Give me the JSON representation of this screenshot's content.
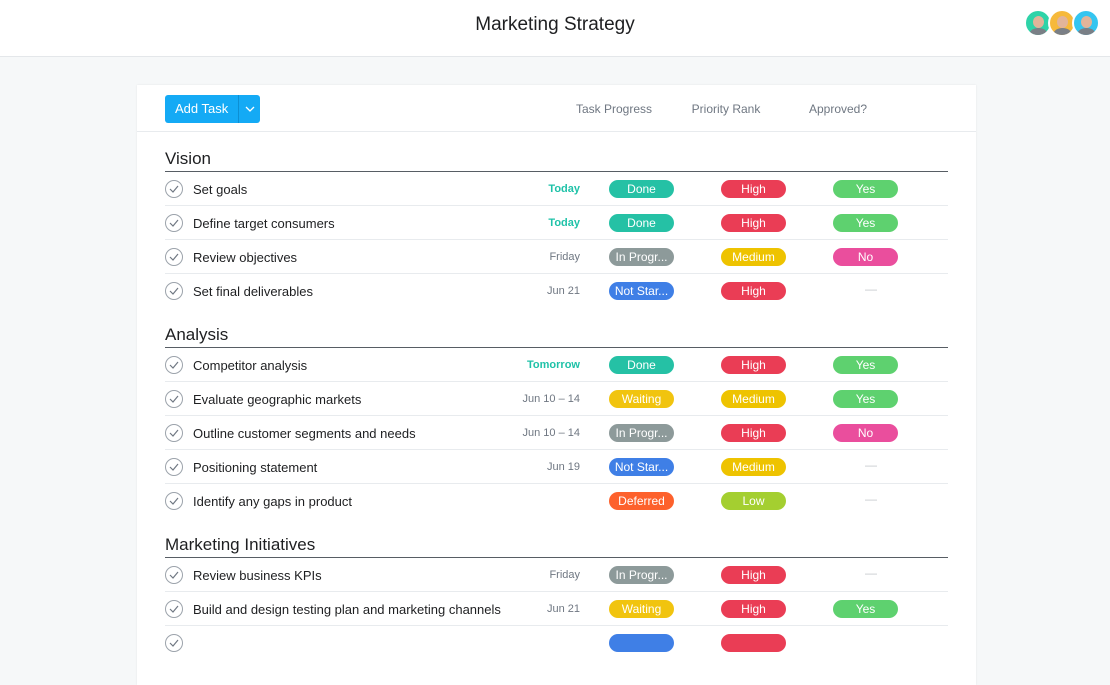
{
  "header": {
    "title": "Marketing Strategy",
    "avatars": [
      "#2ed3a8",
      "#f6b93b",
      "#35c5f0"
    ]
  },
  "toolbar": {
    "add_task_label": "Add Task",
    "columns": [
      "Task Progress",
      "Priority Rank",
      "Approved?"
    ]
  },
  "colors": {
    "Done": "#25c1a5",
    "In Progr...": "#8d9a9a",
    "Not Star...": "#3f7fe6",
    "Waiting": "#f1c40f",
    "Deferred": "#fd612c",
    "High": "#ea3d55",
    "Medium": "#eec300",
    "Low": "#a4cf30",
    "Yes": "#5ed16f",
    "No": "#ea4e9d"
  },
  "sections": [
    {
      "title": "Vision",
      "tasks": [
        {
          "name": "Set goals",
          "date": "Today",
          "date_highlight": true,
          "progress": "Done",
          "priority": "High",
          "approved": "Yes"
        },
        {
          "name": "Define target consumers",
          "date": "Today",
          "date_highlight": true,
          "progress": "Done",
          "priority": "High",
          "approved": "Yes"
        },
        {
          "name": "Review objectives",
          "date": "Friday",
          "progress": "In Progr...",
          "priority": "Medium",
          "approved": "No"
        },
        {
          "name": "Set final deliverables",
          "date": "Jun 21",
          "progress": "Not Star...",
          "priority": "High",
          "approved": "—"
        }
      ]
    },
    {
      "title": "Analysis",
      "tasks": [
        {
          "name": "Competitor analysis",
          "date": "Tomorrow",
          "date_highlight": true,
          "progress": "Done",
          "priority": "High",
          "approved": "Yes"
        },
        {
          "name": "Evaluate geographic markets",
          "date": "Jun 10 – 14",
          "progress": "Waiting",
          "priority": "Medium",
          "approved": "Yes"
        },
        {
          "name": "Outline customer segments and needs",
          "date": "Jun 10 – 14",
          "progress": "In Progr...",
          "priority": "High",
          "approved": "No"
        },
        {
          "name": "Positioning statement",
          "date": "Jun 19",
          "progress": "Not Star...",
          "priority": "Medium",
          "approved": "—"
        },
        {
          "name": "Identify any gaps in product",
          "date": "",
          "progress": "Deferred",
          "priority": "Low",
          "approved": "—"
        }
      ]
    },
    {
      "title": "Marketing Initiatives",
      "tasks": [
        {
          "name": "Review business KPIs",
          "date": "Friday",
          "progress": "In Progr...",
          "priority": "High",
          "approved": "—"
        },
        {
          "name": "Build and design testing plan and marketing channels",
          "date": "Jun 21",
          "progress": "Waiting",
          "priority": "High",
          "approved": "Yes"
        },
        {
          "name": "",
          "date": "",
          "progress": "",
          "progress_color": "#3f7fe6",
          "priority": "",
          "priority_color": "#ea3d55",
          "approved": ""
        }
      ]
    }
  ]
}
